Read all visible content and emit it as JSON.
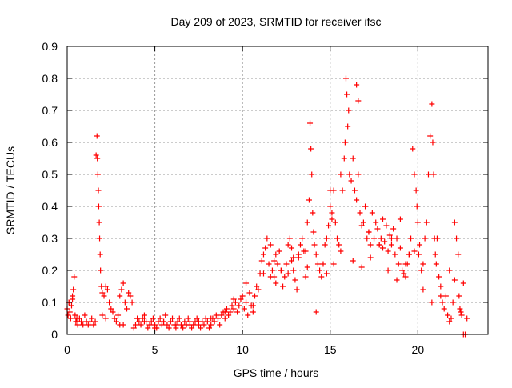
{
  "chart_data": {
    "type": "scatter",
    "title": "Day 209 of 2023, SRMTID for receiver ifsc",
    "xlabel": "GPS time / hours",
    "ylabel": "SRMTID / TECUs",
    "xlim": [
      0,
      24
    ],
    "ylim": [
      0,
      0.9
    ],
    "xticks": [
      "0",
      "5",
      "10",
      "15",
      "20"
    ],
    "yticks": [
      "0",
      "0.1",
      "0.2",
      "0.3",
      "0.4",
      "0.5",
      "0.6",
      "0.7",
      "0.8",
      "0.9"
    ],
    "grid": true,
    "marker": "+",
    "series": [
      {
        "name": "SRMTID",
        "color": "#ff0000",
        "x": [
          0.0,
          0.05,
          0.1,
          0.15,
          0.2,
          0.25,
          0.3,
          0.35,
          0.4,
          0.45,
          0.5,
          0.55,
          0.6,
          0.7,
          0.8,
          0.9,
          1.0,
          1.1,
          1.2,
          1.3,
          1.4,
          1.5,
          1.6,
          1.65,
          1.7,
          1.72,
          1.75,
          1.78,
          1.8,
          1.83,
          1.85,
          1.88,
          1.9,
          1.95,
          2.0,
          2.1,
          2.2,
          2.3,
          2.4,
          2.5,
          2.6,
          2.7,
          2.8,
          2.9,
          3.0,
          3.1,
          3.2,
          3.3,
          3.4,
          3.5,
          3.6,
          3.7,
          3.8,
          3.9,
          4.0,
          4.1,
          4.2,
          4.3,
          4.4,
          4.5,
          4.6,
          4.7,
          4.8,
          4.9,
          5.0,
          5.1,
          5.2,
          5.3,
          5.4,
          5.5,
          5.6,
          5.7,
          5.8,
          5.9,
          6.0,
          6.1,
          6.2,
          6.3,
          6.4,
          6.5,
          6.6,
          6.7,
          6.8,
          6.9,
          7.0,
          7.1,
          7.2,
          7.3,
          7.4,
          7.5,
          7.6,
          7.7,
          7.8,
          7.9,
          8.0,
          8.1,
          8.2,
          8.3,
          8.4,
          8.5,
          8.6,
          8.7,
          8.8,
          8.9,
          9.0,
          9.1,
          9.2,
          9.3,
          9.4,
          9.5,
          9.6,
          9.7,
          9.8,
          9.9,
          10.0,
          10.1,
          10.2,
          10.3,
          10.4,
          10.5,
          10.6,
          10.7,
          10.8,
          10.9,
          11.0,
          11.1,
          11.2,
          11.3,
          11.4,
          11.5,
          11.6,
          11.7,
          11.8,
          11.9,
          12.0,
          12.1,
          12.2,
          12.3,
          12.4,
          12.5,
          12.6,
          12.7,
          12.8,
          12.9,
          13.0,
          13.1,
          13.2,
          13.3,
          13.4,
          13.5,
          13.6,
          13.7,
          13.8,
          13.85,
          13.9,
          13.95,
          14.0,
          14.05,
          14.1,
          14.2,
          14.3,
          14.4,
          14.5,
          14.6,
          14.7,
          14.8,
          14.9,
          15.0,
          15.1,
          15.2,
          15.3,
          15.4,
          15.5,
          15.6,
          15.7,
          15.8,
          15.85,
          15.9,
          15.95,
          16.0,
          16.05,
          16.1,
          16.2,
          16.3,
          16.4,
          16.5,
          16.6,
          16.7,
          16.8,
          16.9,
          17.0,
          17.1,
          17.2,
          17.3,
          17.4,
          17.5,
          17.6,
          17.7,
          17.8,
          17.9,
          18.0,
          18.1,
          18.2,
          18.3,
          18.4,
          18.5,
          18.6,
          18.7,
          18.8,
          18.9,
          19.0,
          19.1,
          19.2,
          19.3,
          19.4,
          19.5,
          19.6,
          19.7,
          19.8,
          19.9,
          19.95,
          20.0,
          20.05,
          20.1,
          20.2,
          20.3,
          20.4,
          20.5,
          20.6,
          20.7,
          20.8,
          20.85,
          20.9,
          20.95,
          21.0,
          21.05,
          21.1,
          21.2,
          21.3,
          21.4,
          21.5,
          21.6,
          21.7,
          21.8,
          21.9,
          22.0,
          22.1,
          22.2,
          22.3,
          22.35,
          22.4,
          22.45,
          22.5,
          22.6,
          22.7,
          22.8,
          14.2,
          10.6,
          0.1,
          0.3,
          0.5,
          2.0,
          2.2,
          3.0,
          3.2,
          4.0,
          4.4,
          5.0,
          5.5,
          6.2,
          7.0,
          7.5,
          8.2,
          9.0,
          9.5,
          10.2,
          11.2,
          11.8,
          12.2,
          12.8,
          13.2,
          14.8,
          15.2,
          15.6,
          16.3,
          16.8,
          17.3,
          17.8,
          18.3,
          18.8,
          19.3,
          19.8,
          20.3,
          20.8,
          21.3,
          21.8,
          22.1,
          22.6,
          16.5,
          16.6,
          15.0,
          15.1,
          17.0,
          17.2,
          18.0,
          18.5,
          19.0,
          19.5,
          13.6,
          13.7,
          12.6,
          12.9,
          11.6,
          11.9
        ],
        "y": [
          0.08,
          0.06,
          0.1,
          0.07,
          0.05,
          0.09,
          0.11,
          0.14,
          0.18,
          0.06,
          0.04,
          0.05,
          0.03,
          0.05,
          0.04,
          0.03,
          0.06,
          0.04,
          0.03,
          0.04,
          0.05,
          0.03,
          0.04,
          0.56,
          0.62,
          0.55,
          0.5,
          0.45,
          0.4,
          0.35,
          0.3,
          0.25,
          0.2,
          0.15,
          0.13,
          0.12,
          0.15,
          0.14,
          0.1,
          0.08,
          0.07,
          0.05,
          0.04,
          0.06,
          0.12,
          0.14,
          0.16,
          0.1,
          0.08,
          0.13,
          0.12,
          0.1,
          0.02,
          0.03,
          0.05,
          0.04,
          0.03,
          0.05,
          0.06,
          0.04,
          0.02,
          0.03,
          0.04,
          0.05,
          0.03,
          0.02,
          0.04,
          0.05,
          0.03,
          0.04,
          0.06,
          0.03,
          0.02,
          0.04,
          0.05,
          0.03,
          0.02,
          0.04,
          0.05,
          0.03,
          0.02,
          0.04,
          0.03,
          0.05,
          0.04,
          0.02,
          0.03,
          0.04,
          0.05,
          0.03,
          0.02,
          0.04,
          0.03,
          0.05,
          0.04,
          0.02,
          0.03,
          0.05,
          0.04,
          0.06,
          0.05,
          0.03,
          0.06,
          0.07,
          0.05,
          0.08,
          0.06,
          0.07,
          0.09,
          0.08,
          0.1,
          0.07,
          0.09,
          0.11,
          0.12,
          0.08,
          0.1,
          0.06,
          0.13,
          0.09,
          0.07,
          0.12,
          0.15,
          0.14,
          0.19,
          0.23,
          0.25,
          0.27,
          0.3,
          0.22,
          0.28,
          0.2,
          0.18,
          0.25,
          0.22,
          0.26,
          0.2,
          0.15,
          0.18,
          0.22,
          0.28,
          0.3,
          0.23,
          0.2,
          0.17,
          0.14,
          0.24,
          0.28,
          0.3,
          0.26,
          0.18,
          0.35,
          0.42,
          0.66,
          0.58,
          0.5,
          0.38,
          0.32,
          0.28,
          0.25,
          0.22,
          0.2,
          0.18,
          0.22,
          0.28,
          0.3,
          0.34,
          0.4,
          0.38,
          0.45,
          0.35,
          0.3,
          0.28,
          0.5,
          0.45,
          0.55,
          0.6,
          0.8,
          0.75,
          0.65,
          0.7,
          0.5,
          0.48,
          0.55,
          0.45,
          0.42,
          0.5,
          0.38,
          0.34,
          0.35,
          0.4,
          0.3,
          0.32,
          0.28,
          0.38,
          0.3,
          0.35,
          0.33,
          0.28,
          0.3,
          0.36,
          0.29,
          0.34,
          0.26,
          0.31,
          0.28,
          0.33,
          0.25,
          0.3,
          0.22,
          0.27,
          0.2,
          0.19,
          0.18,
          0.22,
          0.25,
          0.3,
          0.58,
          0.5,
          0.45,
          0.4,
          0.35,
          0.25,
          0.28,
          0.2,
          0.22,
          0.3,
          0.35,
          0.5,
          0.62,
          0.72,
          0.6,
          0.5,
          0.3,
          0.25,
          0.22,
          0.3,
          0.18,
          0.15,
          0.1,
          0.08,
          0.12,
          0.06,
          0.04,
          0.05,
          0.1,
          0.35,
          0.3,
          0.25,
          0.12,
          0.08,
          0.07,
          0.06,
          0.0,
          0.0,
          0.05,
          0.07,
          0.09,
          0.1,
          0.12,
          0.04,
          0.06,
          0.05,
          0.03,
          0.03,
          0.05,
          0.04,
          0.02,
          0.04,
          0.03,
          0.03,
          0.04,
          0.05,
          0.07,
          0.11,
          0.16,
          0.19,
          0.23,
          0.2,
          0.27,
          0.25,
          0.19,
          0.22,
          0.26,
          0.23,
          0.21,
          0.24,
          0.28,
          0.2,
          0.17,
          0.22,
          0.26,
          0.14,
          0.1,
          0.12,
          0.2,
          0.17,
          0.16,
          0.78,
          0.73,
          0.45,
          0.36,
          0.4,
          0.32,
          0.27,
          0.3,
          0.36,
          0.25,
          0.26,
          0.21,
          0.19,
          0.24,
          0.18,
          0.16
        ]
      }
    ]
  }
}
